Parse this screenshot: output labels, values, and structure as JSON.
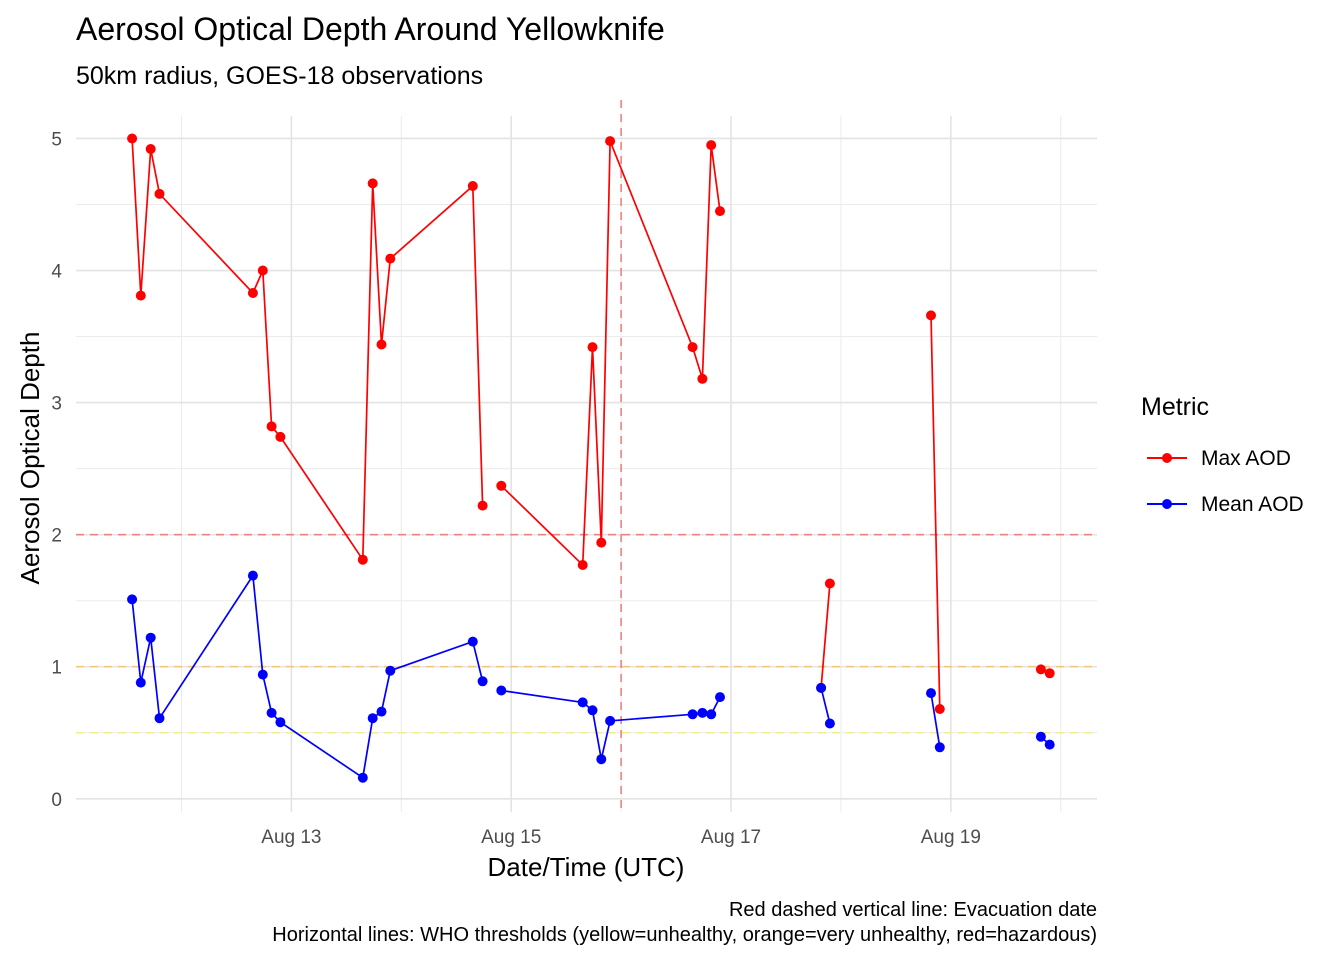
{
  "chart_data": {
    "type": "line",
    "title": "Aerosol Optical Depth Around Yellowknife",
    "subtitle": "50km radius, GOES-18 observations",
    "xlabel": "Date/Time (UTC)",
    "ylabel": "Aerosol Optical Depth",
    "x_ticks": [
      "Aug 13",
      "Aug 15",
      "Aug 17",
      "Aug 19"
    ],
    "x_tick_values": [
      13,
      15,
      17,
      19
    ],
    "y_ticks": [
      "0",
      "1",
      "2",
      "3",
      "4",
      "5"
    ],
    "y_tick_values": [
      0,
      1,
      2,
      3,
      4,
      5
    ],
    "xlim": [
      11.04,
      20.33
    ],
    "ylim": [
      -0.1,
      5.17
    ],
    "grid": true,
    "legend": {
      "title": "Metric",
      "position": "right",
      "entries": [
        "Max AOD",
        "Mean AOD"
      ]
    },
    "series": [
      {
        "name": "Max AOD",
        "color": "#ff0000",
        "segments": [
          [
            [
              11.55,
              5.0
            ],
            [
              11.63,
              3.81
            ],
            [
              11.72,
              4.92
            ],
            [
              11.8,
              4.58
            ],
            [
              12.65,
              3.83
            ],
            [
              12.74,
              4.0
            ],
            [
              12.82,
              2.82
            ],
            [
              12.9,
              2.74
            ],
            [
              13.65,
              1.81
            ],
            [
              13.74,
              4.66
            ],
            [
              13.82,
              3.44
            ],
            [
              13.9,
              4.09
            ],
            [
              14.65,
              4.64
            ],
            [
              14.74,
              2.22
            ]
          ],
          [
            [
              14.91,
              2.37
            ],
            [
              15.65,
              1.77
            ],
            [
              15.74,
              3.42
            ],
            [
              15.82,
              1.94
            ],
            [
              15.9,
              4.98
            ],
            [
              16.65,
              3.42
            ],
            [
              16.74,
              3.18
            ],
            [
              16.82,
              4.95
            ],
            [
              16.9,
              4.45
            ]
          ],
          [
            [
              17.82,
              0.84
            ],
            [
              17.9,
              1.63
            ]
          ],
          [
            [
              18.82,
              3.66
            ],
            [
              18.9,
              0.68
            ]
          ],
          [
            [
              19.82,
              0.98
            ],
            [
              19.9,
              0.95
            ]
          ]
        ]
      },
      {
        "name": "Mean AOD",
        "color": "#0000ff",
        "segments": [
          [
            [
              11.55,
              1.51
            ],
            [
              11.63,
              0.88
            ],
            [
              11.72,
              1.22
            ],
            [
              11.8,
              0.61
            ],
            [
              12.65,
              1.69
            ],
            [
              12.74,
              0.94
            ],
            [
              12.82,
              0.65
            ],
            [
              12.9,
              0.58
            ],
            [
              13.65,
              0.16
            ],
            [
              13.74,
              0.61
            ],
            [
              13.82,
              0.66
            ],
            [
              13.9,
              0.97
            ],
            [
              14.65,
              1.19
            ],
            [
              14.74,
              0.89
            ]
          ],
          [
            [
              14.91,
              0.82
            ],
            [
              15.65,
              0.73
            ],
            [
              15.74,
              0.67
            ],
            [
              15.82,
              0.3
            ],
            [
              15.9,
              0.59
            ],
            [
              16.65,
              0.64
            ],
            [
              16.74,
              0.65
            ],
            [
              16.82,
              0.64
            ],
            [
              16.9,
              0.77
            ]
          ],
          [
            [
              17.82,
              0.84
            ],
            [
              17.9,
              0.57
            ]
          ],
          [
            [
              18.82,
              0.8
            ],
            [
              18.9,
              0.39
            ]
          ],
          [
            [
              19.82,
              0.47
            ],
            [
              19.9,
              0.41
            ]
          ]
        ]
      }
    ],
    "reference_lines": [
      {
        "orientation": "vertical",
        "x": 16.0,
        "color": "#f08080",
        "style": "dashed"
      },
      {
        "orientation": "horizontal",
        "y": 2,
        "color": "#f08080",
        "style": "dashed"
      },
      {
        "orientation": "horizontal",
        "y": 1,
        "color": "#f5c57a",
        "style": "dashed"
      },
      {
        "orientation": "horizontal",
        "y": 0.5,
        "color": "#f2ee8a",
        "style": "dashed"
      }
    ],
    "caption": [
      "Red dashed vertical line: Evacuation date",
      "Horizontal lines: WHO thresholds (yellow=unhealthy, orange=very unhealthy, red=hazardous)"
    ]
  }
}
